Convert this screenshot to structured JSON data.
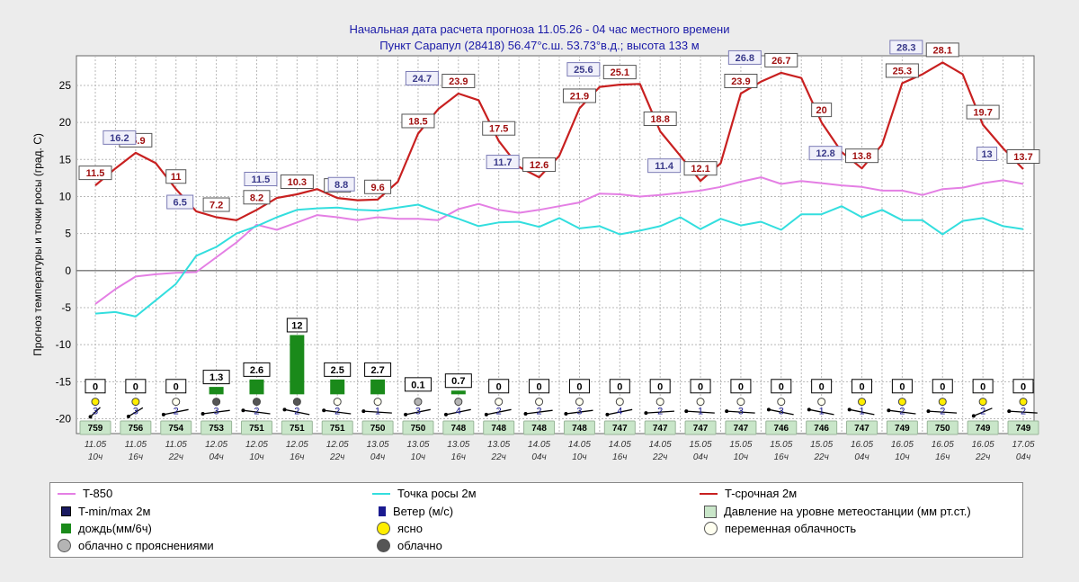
{
  "header": {
    "line1": "Начальная дата расчета прогноза 11.05.26 - 04 час местного времени",
    "line2": "Пункт  Сарапул (28418)   56.47°с.ш.  53.73°в.д.; высота 133 м"
  },
  "colors": {
    "t850": "#e47fe4",
    "dew": "#33dede",
    "temp": "#c82020",
    "rain": "#1a8a1a",
    "pressure_box": "#c9e6c9",
    "sunny": "#ffee00",
    "partly": "#fffff0",
    "cloudy_partly": "#b4b4b4",
    "cloudy": "#555555"
  },
  "chart_data": {
    "type": "line",
    "ylabel": "Прогноз температуры и точки росы (град. С)",
    "ylim": [
      -22,
      29
    ],
    "yticks": [
      25,
      20,
      15,
      10,
      5,
      0,
      -5,
      -10,
      -15,
      -20
    ],
    "grid": true,
    "x_labels": [
      {
        "i": 0,
        "date": "11.05",
        "hour": "10ч"
      },
      {
        "i": 2,
        "date": "11.05",
        "hour": "16ч"
      },
      {
        "i": 4,
        "date": "11.05",
        "hour": "22ч"
      },
      {
        "i": 6,
        "date": "12.05",
        "hour": "04ч"
      },
      {
        "i": 8,
        "date": "12.05",
        "hour": "10ч"
      },
      {
        "i": 10,
        "date": "12.05",
        "hour": "16ч"
      },
      {
        "i": 12,
        "date": "12.05",
        "hour": "22ч"
      },
      {
        "i": 14,
        "date": "13.05",
        "hour": "04ч"
      },
      {
        "i": 16,
        "date": "13.05",
        "hour": "10ч"
      },
      {
        "i": 18,
        "date": "13.05",
        "hour": "16ч"
      },
      {
        "i": 20,
        "date": "13.05",
        "hour": "22ч"
      },
      {
        "i": 22,
        "date": "14.05",
        "hour": "04ч"
      },
      {
        "i": 24,
        "date": "14.05",
        "hour": "10ч"
      },
      {
        "i": 26,
        "date": "14.05",
        "hour": "16ч"
      },
      {
        "i": 28,
        "date": "14.05",
        "hour": "22ч"
      },
      {
        "i": 30,
        "date": "15.05",
        "hour": "04ч"
      },
      {
        "i": 32,
        "date": "15.05",
        "hour": "10ч"
      },
      {
        "i": 34,
        "date": "15.05",
        "hour": "16ч"
      },
      {
        "i": 36,
        "date": "15.05",
        "hour": "22ч"
      },
      {
        "i": 38,
        "date": "16.05",
        "hour": "04ч"
      },
      {
        "i": 40,
        "date": "16.05",
        "hour": "10ч"
      },
      {
        "i": 42,
        "date": "16.05",
        "hour": "16ч"
      },
      {
        "i": 44,
        "date": "16.05",
        "hour": "22ч"
      },
      {
        "i": 46,
        "date": "17.05",
        "hour": "04ч"
      }
    ],
    "series": [
      {
        "name": "T-срочная 2м",
        "key": "temp",
        "values": [
          11.5,
          13.8,
          15.9,
          14.5,
          11,
          8,
          7.2,
          6.8,
          8.2,
          9.8,
          10.3,
          11,
          9.8,
          9.5,
          9.6,
          12,
          18.5,
          21.8,
          23.9,
          23,
          17.5,
          14,
          12.6,
          15.5,
          21.9,
          24.8,
          25.1,
          25.2,
          18.8,
          15.5,
          12.1,
          14.5,
          23.9,
          25.5,
          26.7,
          26,
          20,
          16,
          13.8,
          17,
          25.3,
          26.5,
          28.1,
          26.5,
          19.7,
          16.5,
          13.7
        ]
      },
      {
        "name": "T-850",
        "key": "t850",
        "values": [
          -4.5,
          -2.5,
          -0.8,
          -0.5,
          -0.3,
          -0.2,
          1.8,
          3.8,
          6.2,
          5.5,
          6.5,
          7.5,
          7.2,
          6.8,
          7.2,
          7,
          7,
          6.8,
          8.3,
          9,
          8.2,
          7.8,
          8.2,
          8.7,
          9.2,
          10.4,
          10.3,
          10,
          10.2,
          10.5,
          10.8,
          11.3,
          12,
          12.6,
          11.7,
          12.1,
          11.8,
          11.5,
          11.3,
          10.8,
          10.8,
          10.2,
          11,
          11.2,
          11.8,
          12.2,
          11.7
        ]
      },
      {
        "name": "Точка росы 2м",
        "key": "dew",
        "values": [
          -5.8,
          -5.6,
          -6.2,
          -4,
          -1.8,
          2,
          3.2,
          5,
          6,
          7.2,
          8.2,
          8.4,
          8.5,
          8.2,
          8.1,
          8.5,
          8.9,
          7.9,
          7,
          6,
          6.5,
          6.6,
          5.9,
          7.1,
          5.7,
          6,
          4.9,
          5.4,
          6,
          7.2,
          5.6,
          7,
          6.1,
          6.6,
          5.5,
          7.6,
          7.6,
          8.7,
          7.2,
          8.2,
          6.8,
          6.8,
          4.9,
          6.7,
          7.1,
          6,
          5.6
        ]
      }
    ],
    "temp_labels": [
      {
        "i": 0,
        "v": "11.5"
      },
      {
        "i": 2,
        "v": "15.9"
      },
      {
        "i": 4,
        "v": "11"
      },
      {
        "i": 6,
        "v": "7.2"
      },
      {
        "i": 8,
        "v": "8.2"
      },
      {
        "i": 10,
        "v": "10.3"
      },
      {
        "i": 12,
        "v": "9.8"
      },
      {
        "i": 14,
        "v": "9.6"
      },
      {
        "i": 16,
        "v": "18.5"
      },
      {
        "i": 18,
        "v": "23.9"
      },
      {
        "i": 20,
        "v": "17.5"
      },
      {
        "i": 22,
        "v": "12.6"
      },
      {
        "i": 24,
        "v": "21.9"
      },
      {
        "i": 26,
        "v": "25.1"
      },
      {
        "i": 28,
        "v": "18.8"
      },
      {
        "i": 30,
        "v": "12.1"
      },
      {
        "i": 32,
        "v": "23.9"
      },
      {
        "i": 34,
        "v": "26.7"
      },
      {
        "i": 36,
        "v": "20"
      },
      {
        "i": 38,
        "v": "13.8"
      },
      {
        "i": 40,
        "v": "25.3"
      },
      {
        "i": 42,
        "v": "28.1"
      },
      {
        "i": 44,
        "v": "19.7"
      },
      {
        "i": 46,
        "v": "13.7"
      }
    ],
    "minmax_labels": [
      {
        "i": 2,
        "v": "16.2",
        "y": 15.9
      },
      {
        "i": 5,
        "v": "6.5",
        "y": 7.2
      },
      {
        "i": 9,
        "v": "11.5",
        "y": 10.3
      },
      {
        "i": 13,
        "v": "8.8",
        "y": 9.6
      },
      {
        "i": 17,
        "v": "24.7",
        "y": 23.9
      },
      {
        "i": 21,
        "v": "11.7",
        "y": 12.6
      },
      {
        "i": 25,
        "v": "25.6",
        "y": 25.1
      },
      {
        "i": 29,
        "v": "11.4",
        "y": 12.1
      },
      {
        "i": 33,
        "v": "26.8",
        "y": 26.7
      },
      {
        "i": 37,
        "v": "12.8",
        "y": 13.8
      },
      {
        "i": 41,
        "v": "28.3",
        "y": 28.1
      },
      {
        "i": 45,
        "v": "13",
        "y": 13.7
      }
    ],
    "rain_bars": [
      {
        "i": 6,
        "v": 1.3,
        "label": "1.3",
        "h": 1
      },
      {
        "i": 8,
        "v": 2.6,
        "label": "2.6",
        "h": 2
      },
      {
        "i": 10,
        "v": 12,
        "label": "12",
        "h": 8
      },
      {
        "i": 12,
        "v": 2.5,
        "label": "2.5",
        "h": 2
      },
      {
        "i": 14,
        "v": 2.7,
        "label": "2.7",
        "h": 2
      },
      {
        "i": 16,
        "v": 0.1,
        "label": "0.1",
        "h": 0
      },
      {
        "i": 18,
        "v": 0.7,
        "label": "0.7",
        "h": 0.5
      }
    ],
    "zero_rain": [
      0,
      2,
      4,
      20,
      22,
      24,
      26,
      28,
      30,
      32,
      34,
      36,
      38,
      40,
      42,
      44,
      46
    ],
    "clouds": [
      "sunny",
      "sunny",
      "partly",
      "cloudy",
      "cloudy",
      "cloudy",
      "partly",
      "partly",
      "cloudy_partly",
      "cloudy_partly",
      "partly",
      "partly",
      "partly",
      "partly",
      "partly",
      "partly",
      "partly",
      "partly",
      "partly",
      "sunny",
      "sunny",
      "sunny",
      "sunny",
      "sunny"
    ],
    "wind": [
      "3",
      "3",
      "2",
      "3",
      "2",
      "2",
      "2",
      "1",
      "3",
      "4",
      "2",
      "2",
      "3",
      "4",
      "2",
      "1",
      "3",
      "3",
      "1",
      "1",
      "2",
      "2",
      "2",
      "2"
    ],
    "wind_dir_deg": [
      200,
      210,
      240,
      250,
      290,
      300,
      290,
      280,
      240,
      240,
      240,
      250,
      250,
      240,
      260,
      280,
      280,
      300,
      300,
      300,
      290,
      280,
      220,
      280
    ],
    "pressure": [
      "759",
      "756",
      "754",
      "753",
      "751",
      "751",
      "751",
      "750",
      "750",
      "748",
      "748",
      "748",
      "748",
      "747",
      "747",
      "747",
      "747",
      "746",
      "746",
      "747",
      "749",
      "750",
      "749",
      "749"
    ]
  },
  "legend": {
    "t850": "T-850",
    "dew": "Точка росы 2м",
    "temp": "T-срочная 2м",
    "minmax": "T-min/max 2м",
    "wind": "Ветер (м/с)",
    "pressure": "Давление на уровне метеостанции (мм рт.ст.)",
    "rain": "дождь(мм/6ч)",
    "sunny": "ясно",
    "partly": "переменная облачность",
    "cloudy_partly": "облачно с прояснениями",
    "cloudy": "облачно"
  }
}
